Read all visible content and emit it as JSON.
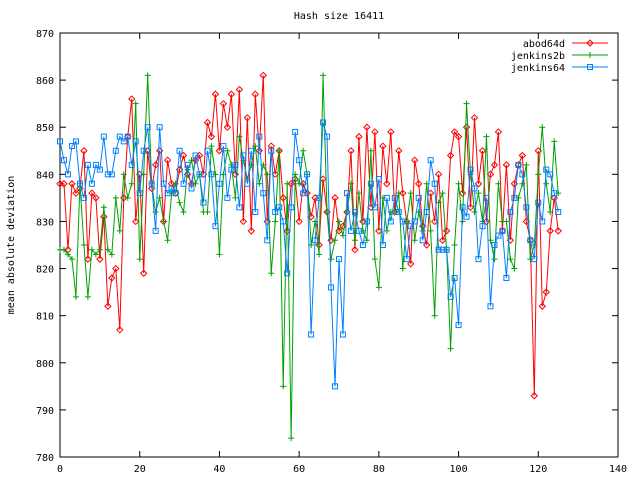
{
  "chart_data": {
    "type": "line",
    "title": "Hash size 16411",
    "ylabel": "mean absolute deviation",
    "x": [
      0,
      1,
      2,
      3,
      4,
      5,
      6,
      7,
      8,
      9,
      10,
      11,
      12,
      13,
      14,
      15,
      16,
      17,
      18,
      19,
      20,
      21,
      22,
      23,
      24,
      25,
      26,
      27,
      28,
      29,
      30,
      31,
      32,
      33,
      34,
      35,
      36,
      37,
      38,
      39,
      40,
      41,
      42,
      43,
      44,
      45,
      46,
      47,
      48,
      49,
      50,
      51,
      52,
      53,
      54,
      55,
      56,
      57,
      58,
      59,
      60,
      61,
      62,
      63,
      64,
      65,
      66,
      67,
      68,
      69,
      70,
      71,
      72,
      73,
      74,
      75,
      76,
      77,
      78,
      79,
      80,
      81,
      82,
      83,
      84,
      85,
      86,
      87,
      88,
      89,
      90,
      91,
      92,
      93,
      94,
      95,
      96,
      97,
      98,
      99,
      100,
      101,
      102,
      103,
      104,
      105,
      106,
      107,
      108,
      109,
      110,
      111,
      112,
      113,
      114,
      115,
      116,
      117,
      118,
      119,
      120,
      121,
      122,
      123,
      124,
      125
    ],
    "series": [
      {
        "name": "abod64d",
        "color": "#ff0000",
        "marker": "diamond",
        "values": [
          838,
          838,
          824,
          838,
          836,
          837,
          845,
          822,
          836,
          835,
          822,
          831,
          812,
          818,
          820,
          807,
          835,
          848,
          856,
          830,
          840,
          819,
          845,
          837,
          842,
          845,
          830,
          843,
          838,
          836,
          841,
          844,
          840,
          838,
          843,
          844,
          840,
          851,
          848,
          857,
          845,
          855,
          850,
          857,
          840,
          858,
          830,
          852,
          828,
          857,
          845,
          861,
          830,
          846,
          840,
          845,
          835,
          828,
          838,
          839,
          830,
          838,
          836,
          831,
          835,
          825,
          839,
          832,
          826,
          835,
          828,
          829,
          832,
          845,
          824,
          848,
          830,
          850,
          833,
          849,
          828,
          846,
          838,
          849,
          832,
          845,
          836,
          830,
          821,
          843,
          838,
          829,
          825,
          836,
          830,
          840,
          826,
          828,
          844,
          849,
          848,
          836,
          850,
          833,
          852,
          838,
          845,
          830,
          840,
          842,
          849,
          828,
          842,
          826,
          838,
          842,
          844,
          830,
          826,
          793,
          845,
          812,
          815,
          828,
          835,
          828
        ]
      },
      {
        "name": "jenkins2b",
        "color": "#00a000",
        "marker": "plus",
        "values": [
          824,
          824,
          823,
          822,
          814,
          838,
          825,
          814,
          824,
          823,
          824,
          833,
          824,
          823,
          835,
          828,
          840,
          835,
          838,
          855,
          822,
          840,
          861,
          838,
          832,
          835,
          830,
          826,
          836,
          838,
          834,
          832,
          841,
          843,
          838,
          840,
          832,
          832,
          846,
          840,
          823,
          840,
          845,
          842,
          835,
          848,
          843,
          839,
          842,
          846,
          838,
          842,
          840,
          819,
          830,
          845,
          795,
          838,
          784,
          840,
          838,
          845,
          840,
          825,
          830,
          823,
          861,
          832,
          822,
          826,
          830,
          827,
          832,
          838,
          826,
          836,
          828,
          826,
          845,
          822,
          816,
          835,
          828,
          832,
          832,
          836,
          820,
          830,
          836,
          826,
          832,
          828,
          838,
          828,
          810,
          834,
          836,
          824,
          803,
          825,
          838,
          830,
          855,
          840,
          832,
          836,
          830,
          848,
          826,
          822,
          838,
          830,
          830,
          822,
          820,
          835,
          838,
          842,
          822,
          825,
          840,
          850,
          838,
          832,
          847,
          836
        ]
      },
      {
        "name": "jenkins64",
        "color": "#0080ff",
        "marker": "square",
        "values": [
          847,
          843,
          840,
          846,
          847,
          838,
          835,
          842,
          838,
          842,
          841,
          848,
          840,
          840,
          845,
          848,
          847,
          848,
          842,
          847,
          836,
          845,
          850,
          838,
          828,
          850,
          838,
          836,
          837,
          836,
          845,
          838,
          842,
          837,
          844,
          840,
          834,
          845,
          840,
          829,
          838,
          846,
          835,
          841,
          842,
          833,
          844,
          838,
          845,
          832,
          848,
          836,
          826,
          845,
          832,
          833,
          830,
          819,
          833,
          849,
          843,
          836,
          840,
          806,
          826,
          835,
          851,
          848,
          816,
          795,
          822,
          806,
          836,
          828,
          832,
          828,
          825,
          830,
          838,
          833,
          839,
          825,
          835,
          830,
          835,
          832,
          830,
          822,
          829,
          830,
          835,
          826,
          832,
          843,
          838,
          824,
          824,
          824,
          814,
          818,
          808,
          833,
          831,
          841,
          837,
          822,
          829,
          835,
          812,
          825,
          827,
          828,
          818,
          832,
          835,
          842,
          840,
          833,
          826,
          822,
          834,
          830,
          841,
          840,
          836,
          832
        ]
      }
    ],
    "xlim": [
      0,
      140
    ],
    "xticks": [
      0,
      20,
      40,
      60,
      80,
      100,
      120,
      140
    ],
    "ylim": [
      780,
      870
    ],
    "yticks": [
      780,
      790,
      800,
      810,
      820,
      830,
      840,
      850,
      860,
      870
    ],
    "legend": "upper right"
  }
}
